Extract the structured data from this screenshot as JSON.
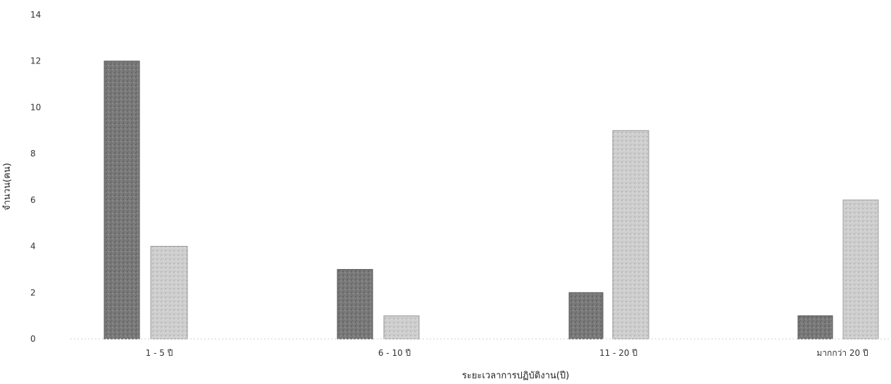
{
  "chart_data": {
    "type": "bar",
    "categories": [
      "1 - 5 ปี",
      "6 - 10 ปี",
      "11 - 20 ปี",
      "มากกว่า 20 ปี"
    ],
    "series": [
      {
        "values": [
          12,
          3,
          2,
          1
        ]
      },
      {
        "values": [
          4,
          1,
          9,
          6
        ]
      }
    ],
    "title": "",
    "xlabel": "ระยะเวลาการปฏิบัติงาน(ปี)",
    "ylabel": "จำนวน(คน)",
    "ylim": [
      0,
      14
    ],
    "yticks": [
      "0",
      "2",
      "4",
      "6",
      "8",
      "10",
      "12",
      "14"
    ],
    "grid": false,
    "legend": "none",
    "colors": [
      "#777777",
      "#c6c6c6"
    ]
  }
}
